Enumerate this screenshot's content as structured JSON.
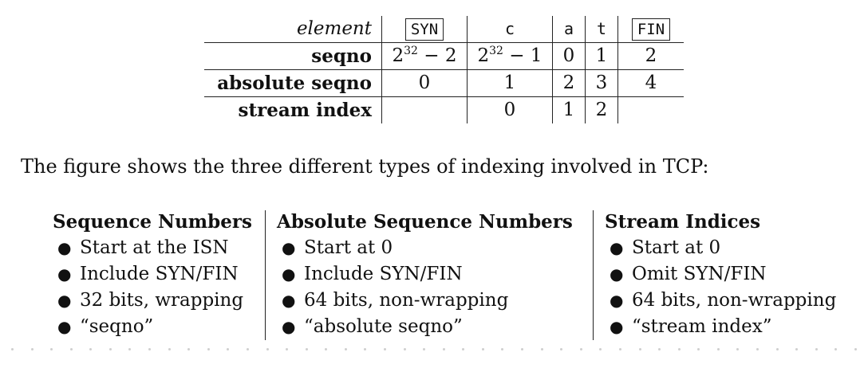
{
  "table": {
    "row_labels": {
      "element": "element",
      "seqno": "seqno",
      "absolute": "absolute seqno",
      "stream": "stream index"
    },
    "elements": [
      "SYN",
      "c",
      "a",
      "t",
      "FIN"
    ],
    "seqno": {
      "syn_base": "2",
      "syn_exp": "32",
      "syn_rest": " − 2",
      "c_base": "2",
      "c_exp": "32",
      "c_rest": " − 1",
      "a": "0",
      "t": "1",
      "fin": "2"
    },
    "absolute_seqno": [
      "0",
      "1",
      "2",
      "3",
      "4"
    ],
    "stream_index": [
      "",
      "0",
      "1",
      "2",
      ""
    ]
  },
  "caption": "The figure shows the three different types of indexing involved in TCP:",
  "columns": [
    {
      "heading": "Sequence Numbers",
      "bullets": [
        "Start at the ISN",
        "Include SYN/FIN",
        "32 bits, wrapping",
        "“seqno”"
      ]
    },
    {
      "heading": "Absolute Sequence Numbers",
      "bullets": [
        "Start at 0",
        "Include SYN/FIN",
        "64 bits, non-wrapping",
        "“absolute seqno”"
      ]
    },
    {
      "heading": "Stream Indices",
      "bullets": [
        "Start at 0",
        "Omit SYN/FIN",
        "64 bits, non-wrapping",
        "“stream index”"
      ]
    }
  ],
  "bullet_glyph": "●"
}
